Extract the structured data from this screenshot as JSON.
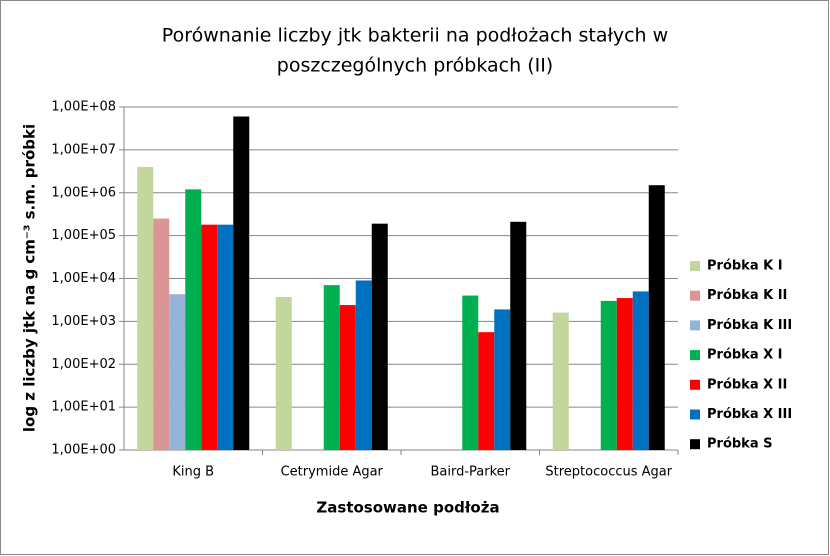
{
  "chart_data": {
    "type": "bar",
    "title": [
      "Porównanie liczby jtk bakterii na podłożach stałych w",
      "poszczególnych próbkach (II)"
    ],
    "x_label": "Zastosowane podłoża",
    "y_label": "log z liczby jtk na g cm⁻³ s.m. próbki",
    "categories": [
      "King B",
      "Cetrymide Agar",
      "Baird-Parker",
      "Streptococcus Agar"
    ],
    "log_scale": true,
    "grid": true,
    "legend": "right",
    "ylim": [
      1,
      100000000
    ],
    "yticks": [
      {
        "value": 1,
        "label": "1,00E+00"
      },
      {
        "value": 10,
        "label": "1,00E+01"
      },
      {
        "value": 100,
        "label": "1,00E+02"
      },
      {
        "value": 1000,
        "label": "1,00E+03"
      },
      {
        "value": 10000,
        "label": "1,00E+04"
      },
      {
        "value": 100000,
        "label": "1,00E+05"
      },
      {
        "value": 1000000,
        "label": "1,00E+06"
      },
      {
        "value": 10000000,
        "label": "1,00E+07"
      },
      {
        "value": 100000000,
        "label": "1,00E+08"
      }
    ],
    "series": [
      {
        "name": "Próbka K I",
        "color": "#c3d69b",
        "values": [
          4000000,
          3700,
          null,
          1600
        ]
      },
      {
        "name": "Próbka K II",
        "color": "#d99694",
        "values": [
          250000,
          null,
          null,
          null
        ]
      },
      {
        "name": "Próbka K III",
        "color": "#95b3d7",
        "values": [
          4300,
          null,
          null,
          null
        ]
      },
      {
        "name": "Próbka X I",
        "color": "#00b050",
        "values": [
          1200000,
          7000,
          4000,
          3000
        ]
      },
      {
        "name": "Próbka X II",
        "color": "#ff0000",
        "values": [
          180000,
          2400,
          560,
          3500
        ]
      },
      {
        "name": "Próbka X III",
        "color": "#0070c0",
        "values": [
          180000,
          9000,
          1900,
          5000
        ]
      },
      {
        "name": "Próbka S",
        "color": "#000000",
        "values": [
          60000000,
          190000,
          210000,
          1500000
        ]
      }
    ]
  }
}
